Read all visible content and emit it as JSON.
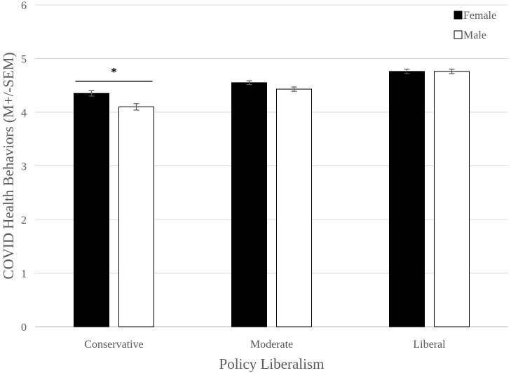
{
  "chart_data": {
    "type": "bar",
    "categories": [
      "Conservative",
      "Moderate",
      "Liberal"
    ],
    "series": [
      {
        "name": "Female",
        "values": [
          4.35,
          4.55,
          4.76
        ],
        "errors": [
          0.05,
          0.035,
          0.04
        ],
        "color": "#000000"
      },
      {
        "name": "Male",
        "values": [
          4.1,
          4.43,
          4.76
        ],
        "errors": [
          0.06,
          0.04,
          0.04
        ],
        "color": "#ffffff"
      }
    ],
    "xlabel": "Policy Liberalism",
    "ylabel": "COVID Health Behaviors (M+/-SEM)",
    "ylim": [
      0,
      6
    ],
    "yticks": [
      0,
      1,
      2,
      3,
      4,
      5,
      6
    ],
    "grid": true,
    "legend": "top-right",
    "annotations": [
      {
        "text": "*",
        "category": "Conservative"
      }
    ]
  }
}
